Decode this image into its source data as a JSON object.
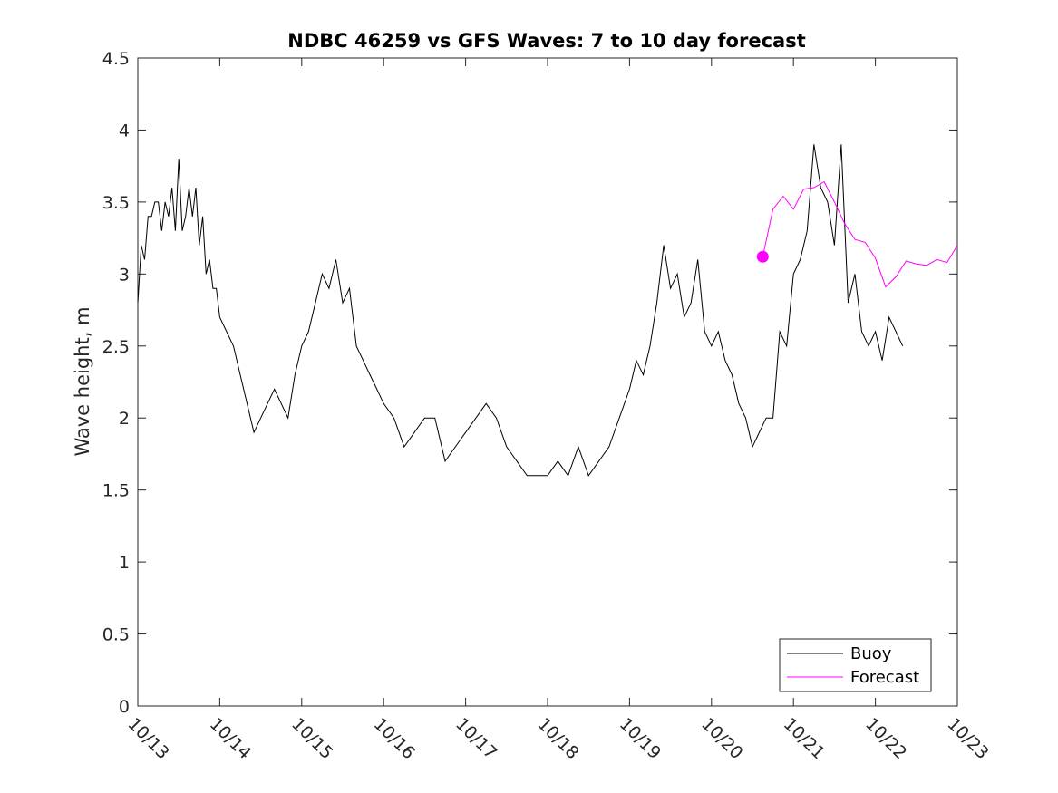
{
  "chart_data": {
    "type": "line",
    "title": "NDBC 46259 vs GFS Waves: 7 to 10 day forecast",
    "xlabel": "",
    "ylabel": "Wave height, m",
    "xlim": [
      "10/13",
      "10/23"
    ],
    "ylim": [
      0,
      4.5
    ],
    "x_tick_labels": [
      "10/13",
      "10/14",
      "10/15",
      "10/16",
      "10/17",
      "10/18",
      "10/19",
      "10/20",
      "10/21",
      "10/22",
      "10/23"
    ],
    "y_tick_labels": [
      "0",
      "0.5",
      "1",
      "1.5",
      "2",
      "2.5",
      "3",
      "3.5",
      "4",
      "4.5"
    ],
    "y_ticks": [
      0,
      0.5,
      1,
      1.5,
      2,
      2.5,
      3,
      3.5,
      4,
      4.5
    ],
    "grid": false,
    "legend_position": "bottom-right",
    "series": [
      {
        "name": "Buoy",
        "color": "#000000",
        "x": [
          "10/13 00:00",
          "10/13 01:00",
          "10/13 02:00",
          "10/13 03:00",
          "10/13 04:00",
          "10/13 05:00",
          "10/13 06:00",
          "10/13 07:00",
          "10/13 08:00",
          "10/13 09:00",
          "10/13 10:00",
          "10/13 11:00",
          "10/13 12:00",
          "10/13 13:00",
          "10/13 14:00",
          "10/13 15:00",
          "10/13 16:00",
          "10/13 17:00",
          "10/13 18:00",
          "10/13 19:00",
          "10/13 20:00",
          "10/13 21:00",
          "10/13 22:00",
          "10/13 23:00",
          "10/14 00:00",
          "10/14 02:00",
          "10/14 04:00",
          "10/14 06:00",
          "10/14 08:00",
          "10/14 10:00",
          "10/14 12:00",
          "10/14 14:00",
          "10/14 16:00",
          "10/14 18:00",
          "10/14 20:00",
          "10/14 22:00",
          "10/15 00:00",
          "10/15 02:00",
          "10/15 04:00",
          "10/15 06:00",
          "10/15 08:00",
          "10/15 10:00",
          "10/15 12:00",
          "10/15 14:00",
          "10/15 16:00",
          "10/15 18:00",
          "10/15 20:00",
          "10/15 22:00",
          "10/16 00:00",
          "10/16 03:00",
          "10/16 06:00",
          "10/16 09:00",
          "10/16 12:00",
          "10/16 15:00",
          "10/16 18:00",
          "10/16 21:00",
          "10/17 00:00",
          "10/17 03:00",
          "10/17 06:00",
          "10/17 09:00",
          "10/17 12:00",
          "10/17 15:00",
          "10/17 18:00",
          "10/17 21:00",
          "10/18 00:00",
          "10/18 03:00",
          "10/18 06:00",
          "10/18 09:00",
          "10/18 12:00",
          "10/18 15:00",
          "10/18 18:00",
          "10/18 21:00",
          "10/19 00:00",
          "10/19 02:00",
          "10/19 04:00",
          "10/19 06:00",
          "10/19 08:00",
          "10/19 10:00",
          "10/19 12:00",
          "10/19 14:00",
          "10/19 16:00",
          "10/19 18:00",
          "10/19 20:00",
          "10/19 22:00",
          "10/20 00:00",
          "10/20 02:00",
          "10/20 04:00",
          "10/20 06:00",
          "10/20 08:00",
          "10/20 10:00",
          "10/20 12:00",
          "10/20 14:00",
          "10/20 16:00",
          "10/20 18:00",
          "10/20 20:00",
          "10/20 22:00",
          "10/21 00:00",
          "10/21 02:00",
          "10/21 04:00",
          "10/21 06:00",
          "10/21 08:00",
          "10/21 10:00",
          "10/21 12:00",
          "10/21 14:00",
          "10/21 16:00",
          "10/21 18:00",
          "10/21 20:00",
          "10/21 22:00",
          "10/22 00:00",
          "10/22 02:00",
          "10/22 04:00",
          "10/22 06:00",
          "10/22 08:00"
        ],
        "values": [
          2.8,
          3.2,
          3.1,
          3.4,
          3.4,
          3.5,
          3.5,
          3.3,
          3.5,
          3.4,
          3.6,
          3.3,
          3.8,
          3.3,
          3.4,
          3.6,
          3.4,
          3.6,
          3.2,
          3.4,
          3.0,
          3.1,
          2.9,
          2.9,
          2.7,
          2.6,
          2.5,
          2.3,
          2.1,
          1.9,
          2.0,
          2.1,
          2.2,
          2.1,
          2.0,
          2.3,
          2.5,
          2.6,
          2.8,
          3.0,
          2.9,
          3.1,
          2.8,
          2.9,
          2.5,
          2.4,
          2.3,
          2.2,
          2.1,
          2.0,
          1.8,
          1.9,
          2.0,
          2.0,
          1.7,
          1.8,
          1.9,
          2.0,
          2.1,
          2.0,
          1.8,
          1.7,
          1.6,
          1.6,
          1.6,
          1.7,
          1.6,
          1.8,
          1.6,
          1.7,
          1.8,
          2.0,
          2.2,
          2.4,
          2.3,
          2.5,
          2.8,
          3.2,
          2.9,
          3.0,
          2.7,
          2.8,
          3.1,
          2.6,
          2.5,
          2.6,
          2.4,
          2.3,
          2.1,
          2.0,
          1.8,
          1.9,
          2.0,
          2.0,
          2.6,
          2.5,
          3.0,
          3.1,
          3.3,
          3.9,
          3.6,
          3.5,
          3.2,
          3.9,
          2.8,
          3.0,
          2.6,
          2.5,
          2.6,
          2.4,
          2.7,
          2.6,
          2.5
        ]
      },
      {
        "name": "Forecast",
        "color": "#ff00ff",
        "x": [
          "10/20 15:00",
          "10/20 18:00",
          "10/20 21:00",
          "10/21 00:00",
          "10/21 03:00",
          "10/21 06:00",
          "10/21 09:00",
          "10/21 12:00",
          "10/21 15:00",
          "10/21 18:00",
          "10/21 21:00",
          "10/22 00:00",
          "10/22 03:00",
          "10/22 06:00",
          "10/22 09:00",
          "10/22 12:00",
          "10/22 15:00",
          "10/22 18:00",
          "10/22 21:00",
          "10/23 00:00"
        ],
        "values": [
          3.12,
          3.45,
          3.54,
          3.45,
          3.59,
          3.6,
          3.64,
          3.5,
          3.35,
          3.24,
          3.22,
          3.11,
          2.91,
          2.98,
          3.09,
          3.07,
          3.06,
          3.1,
          3.08,
          3.2
        ]
      }
    ],
    "marker": {
      "x": "10/20 15:00",
      "value": 3.12,
      "color": "#ff00ff"
    }
  }
}
